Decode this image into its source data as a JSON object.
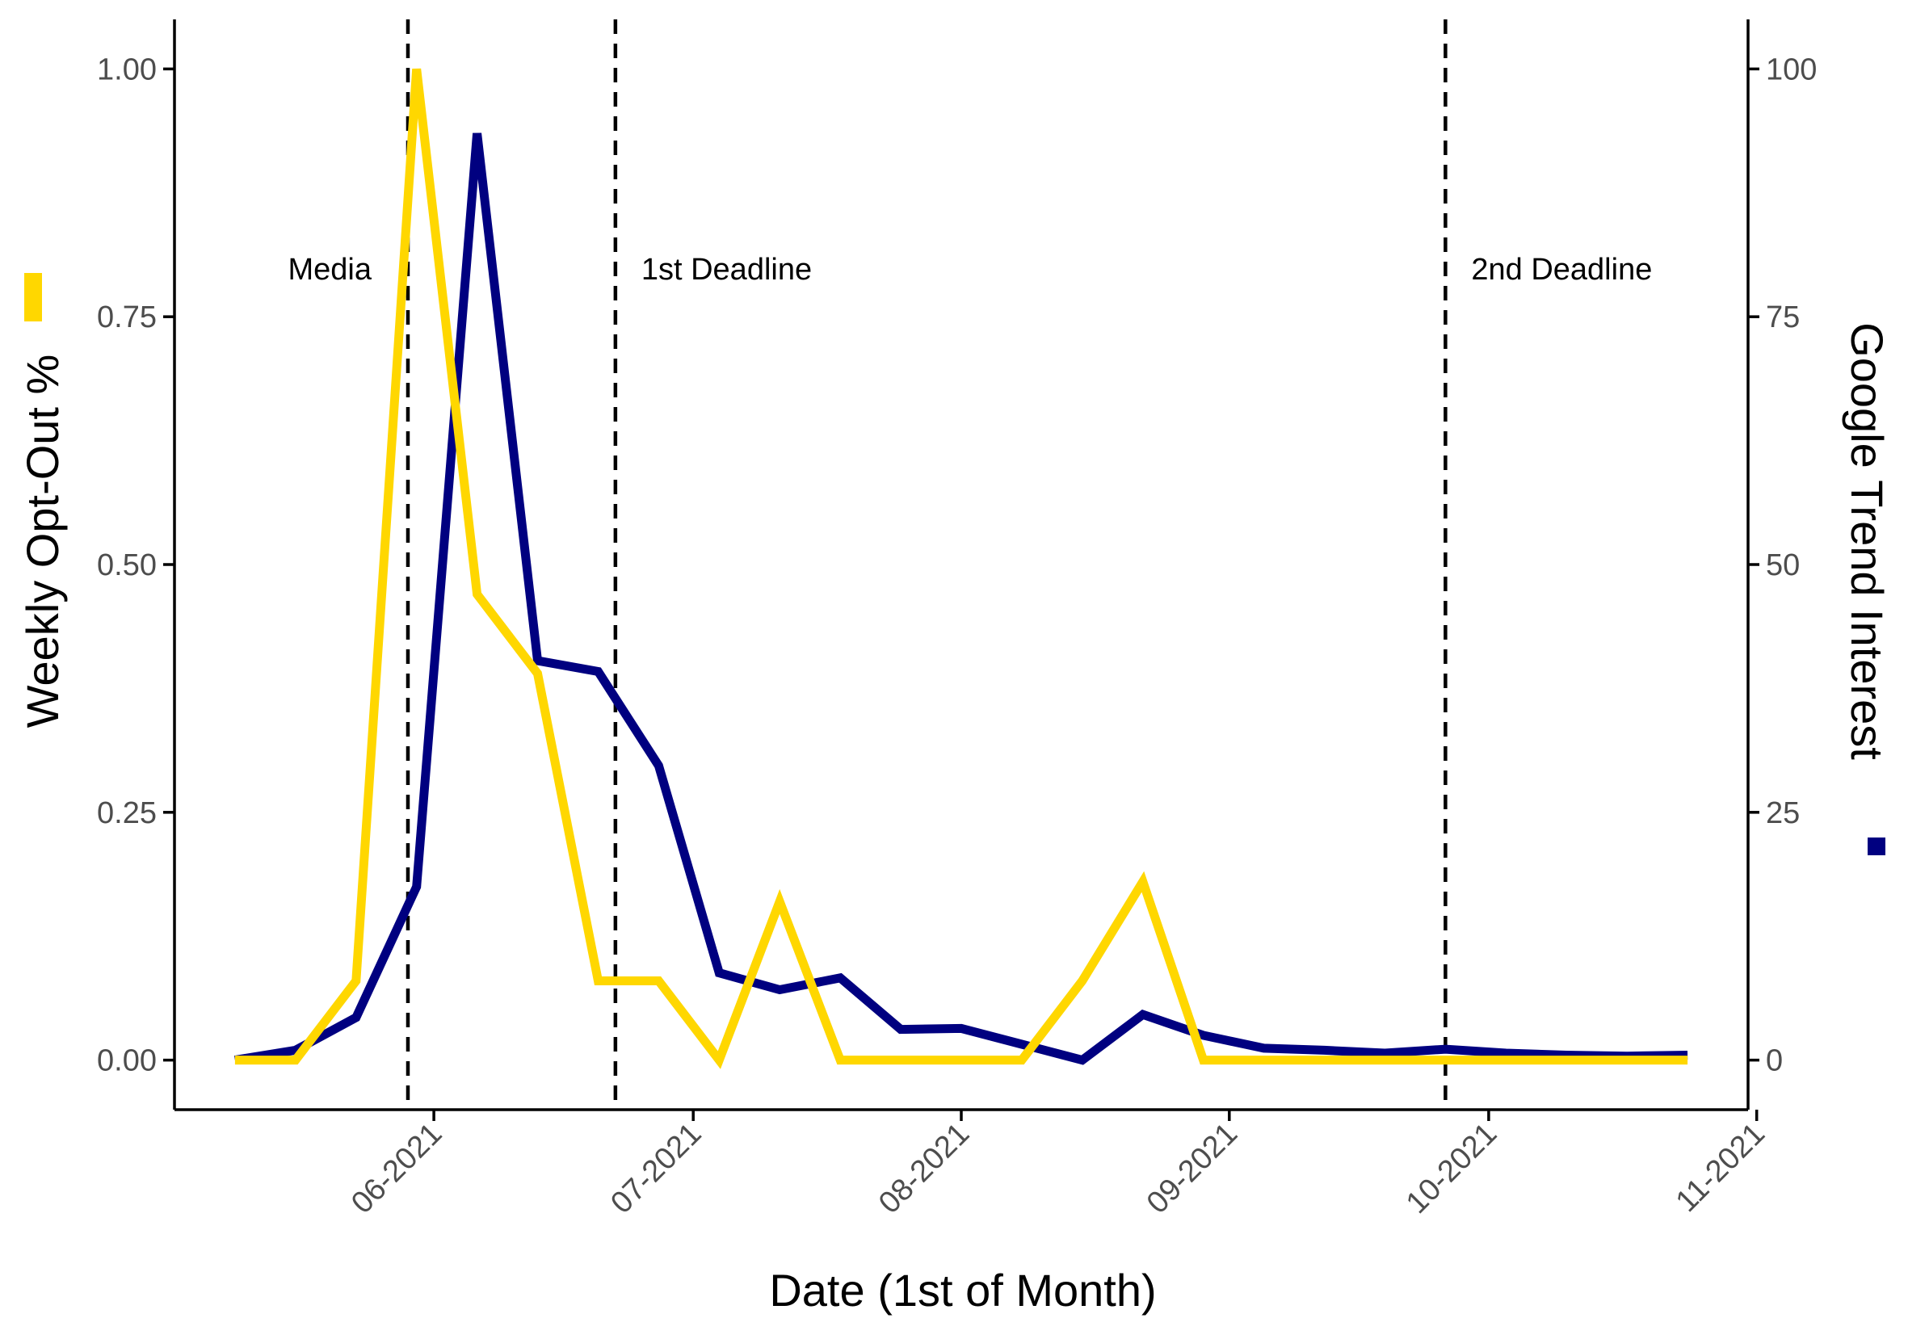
{
  "chart_data": {
    "type": "line",
    "xlabel": "Date (1st of Month)",
    "ylabel_left": "Weekly Opt-Out %",
    "ylabel_right": "Google Trend Interest",
    "x_ticks": [
      "06-2021",
      "07-2021",
      "08-2021",
      "09-2021",
      "10-2021",
      "11-2021"
    ],
    "xlim": [
      "2021-05-02",
      "2021-10-31"
    ],
    "y_left_ticks": [
      "0.00",
      "0.25",
      "0.50",
      "0.75",
      "1.00"
    ],
    "y_left_lim": [
      -0.05,
      1.05
    ],
    "y_right_ticks": [
      "0",
      "25",
      "50",
      "75",
      "100"
    ],
    "y_right_lim": [
      -5,
      105
    ],
    "grid": false,
    "legend": "none; axis titles carry colored bars",
    "series": [
      {
        "axis": "left",
        "color": "#FFD700",
        "x": [
          "2021-05-09",
          "2021-05-16",
          "2021-05-23",
          "2021-05-30",
          "2021-06-06",
          "2021-06-13",
          "2021-06-20",
          "2021-06-27",
          "2021-07-04",
          "2021-07-11",
          "2021-07-18",
          "2021-07-25",
          "2021-08-01",
          "2021-08-08",
          "2021-08-15",
          "2021-08-22",
          "2021-08-29",
          "2021-09-05",
          "2021-09-12",
          "2021-09-19",
          "2021-09-26",
          "2021-10-03",
          "2021-10-10",
          "2021-10-17",
          "2021-10-24"
        ],
        "values": [
          0.0,
          0.0,
          0.08,
          1.0,
          0.47,
          0.39,
          0.08,
          0.08,
          0.0,
          0.16,
          0.0,
          0.0,
          0.0,
          0.0,
          0.08,
          0.18,
          0.0,
          0.0,
          0.0,
          0.0,
          0.0,
          0.0,
          0.0,
          0.0,
          0.0
        ]
      },
      {
        "axis": "right",
        "color": "#000080",
        "x": [
          "2021-05-09",
          "2021-05-16",
          "2021-05-23",
          "2021-05-30",
          "2021-06-06",
          "2021-06-13",
          "2021-06-20",
          "2021-06-27",
          "2021-07-04",
          "2021-07-11",
          "2021-07-18",
          "2021-07-25",
          "2021-08-01",
          "2021-08-08",
          "2021-08-15",
          "2021-08-22",
          "2021-08-29",
          "2021-09-05",
          "2021-09-12",
          "2021-09-19",
          "2021-09-26",
          "2021-10-03",
          "2021-10-10",
          "2021-10-17",
          "2021-10-24"
        ],
        "values": [
          0,
          1,
          4.3,
          17.5,
          93.5,
          40.3,
          39.2,
          29.7,
          8.8,
          7.1,
          8.3,
          3.1,
          3.2,
          1.6,
          0,
          4.6,
          2.5,
          1.2,
          1.0,
          0.7,
          1.1,
          0.7,
          0.5,
          0.4,
          0.5
        ]
      }
    ],
    "events": [
      {
        "label": "Media",
        "date": "2021-05-29"
      },
      {
        "label": "1st Deadline",
        "date": "2021-06-22"
      },
      {
        "label": "2nd Deadline",
        "date": "2021-09-26"
      }
    ]
  }
}
